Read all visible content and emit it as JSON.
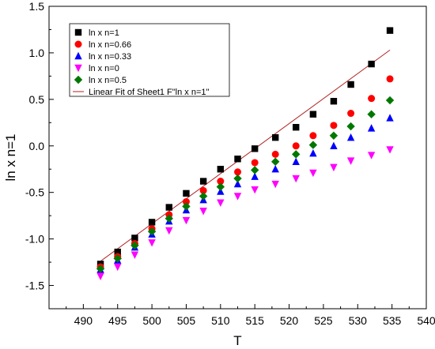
{
  "chart_data": {
    "type": "scatter",
    "title": "",
    "xlabel": "T",
    "ylabel": "ln x n=1",
    "xlim": [
      485,
      540
    ],
    "ylim": [
      -1.75,
      1.5
    ],
    "grid": false,
    "legend_position": "top-left",
    "x_ticks": [
      490,
      495,
      500,
      505,
      510,
      515,
      520,
      525,
      530,
      535,
      540
    ],
    "y_ticks": [
      -1.5,
      -1.0,
      -0.5,
      0.0,
      0.5,
      1.0,
      1.5
    ],
    "x_tick_labels": [
      "490",
      "495",
      "500",
      "505",
      "510",
      "515",
      "520",
      "525",
      "530",
      "535",
      "540"
    ],
    "y_tick_labels": [
      "-1.5",
      "-1.0",
      "-0.5",
      "0.0",
      "0.5",
      "1.0",
      "1.5"
    ],
    "x": [
      492.5,
      495.0,
      497.5,
      500.0,
      502.5,
      505.0,
      507.5,
      510.0,
      512.5,
      515.0,
      518.0,
      521.0,
      523.5,
      526.5,
      529.0,
      532.0,
      534.7
    ],
    "series": [
      {
        "name": "ln x n=1",
        "marker": "square",
        "color": "#000000",
        "y": [
          -1.27,
          -1.14,
          -0.99,
          -0.82,
          -0.66,
          -0.51,
          -0.38,
          -0.25,
          -0.14,
          -0.03,
          0.09,
          0.2,
          0.34,
          0.48,
          0.66,
          0.88,
          1.24
        ]
      },
      {
        "name": "ln x n=0.66",
        "marker": "circle",
        "color": "#ff0000",
        "y": [
          -1.3,
          -1.19,
          -1.05,
          -0.89,
          -0.74,
          -0.6,
          -0.48,
          -0.38,
          -0.28,
          -0.18,
          -0.09,
          0.0,
          0.11,
          0.22,
          0.35,
          0.51,
          0.72
        ]
      },
      {
        "name": "ln x n=0.33",
        "marker": "triangle-up",
        "color": "#0000ff",
        "y": [
          -1.33,
          -1.23,
          -1.09,
          -0.95,
          -0.81,
          -0.69,
          -0.58,
          -0.49,
          -0.41,
          -0.33,
          -0.25,
          -0.17,
          -0.08,
          0.0,
          0.09,
          0.19,
          0.3
        ]
      },
      {
        "name": "ln x n=0",
        "marker": "triangle-down",
        "color": "#ff00ff",
        "y": [
          -1.4,
          -1.3,
          -1.17,
          -1.04,
          -0.91,
          -0.8,
          -0.7,
          -0.61,
          -0.54,
          -0.47,
          -0.41,
          -0.35,
          -0.29,
          -0.23,
          -0.16,
          -0.1,
          -0.04
        ]
      },
      {
        "name": "ln x n=0.5",
        "marker": "diamond",
        "color": "#007800",
        "y": [
          -1.32,
          -1.21,
          -1.07,
          -0.92,
          -0.78,
          -0.65,
          -0.54,
          -0.44,
          -0.35,
          -0.26,
          -0.17,
          -0.09,
          0.01,
          0.11,
          0.21,
          0.34,
          0.49
        ]
      }
    ],
    "fit_line": {
      "name": "Linear Fit of Sheet1 F\"ln x n=1\"",
      "color": "#b22222",
      "x": [
        492.5,
        534.7
      ],
      "y": [
        -1.24,
        1.03
      ]
    }
  }
}
